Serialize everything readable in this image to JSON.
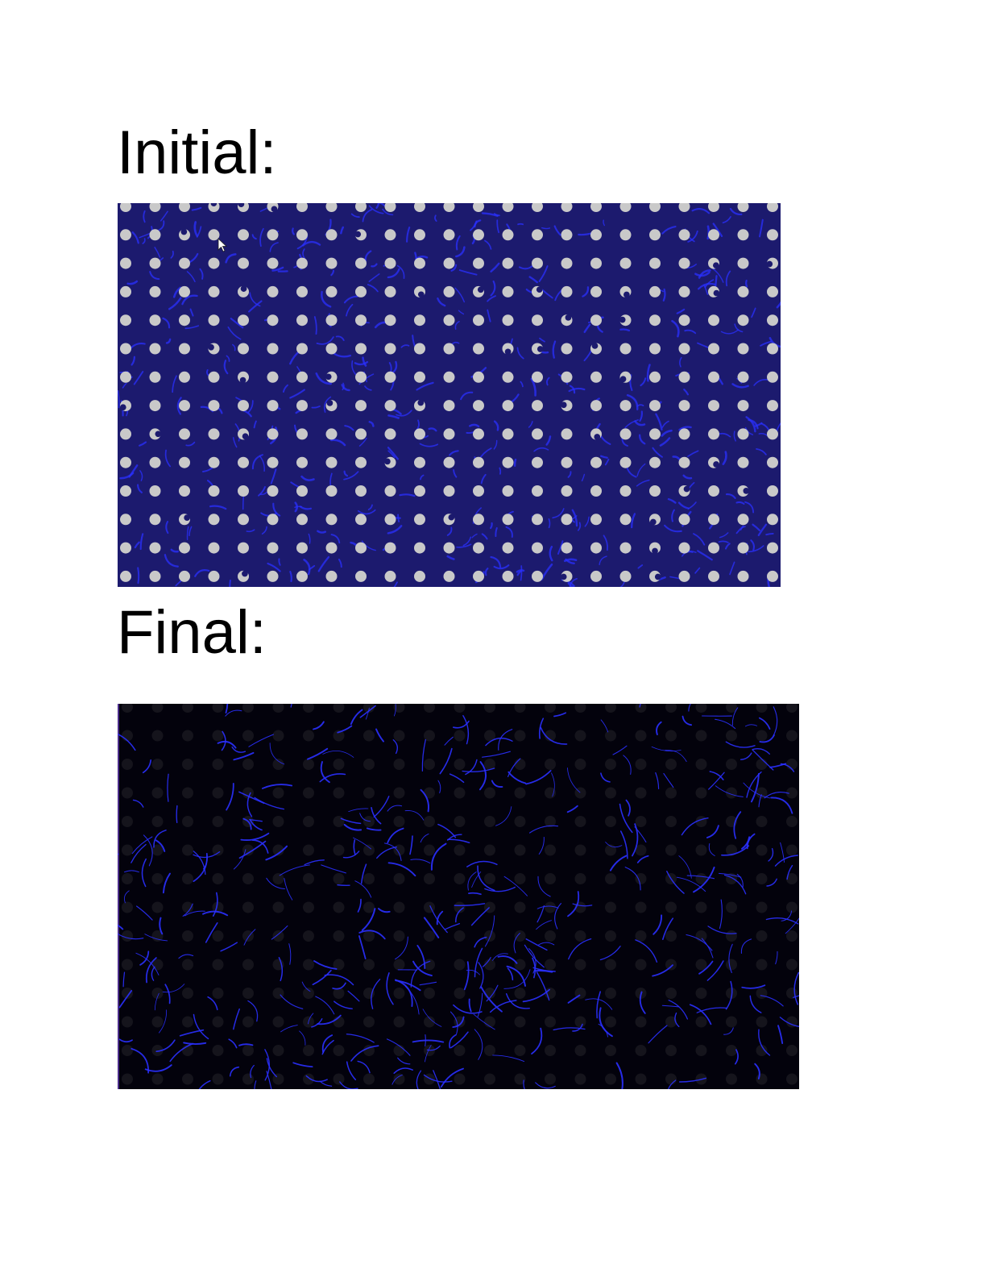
{
  "sections": {
    "initial": {
      "label": "Initial:"
    },
    "final": {
      "label": "Final:"
    }
  },
  "colors": {
    "initial_background": "#1c1a6e",
    "final_background": "#03020c",
    "dot_light": "#c9c9c9",
    "dot_dark": "#15141c",
    "filament": "#2a30ff"
  }
}
